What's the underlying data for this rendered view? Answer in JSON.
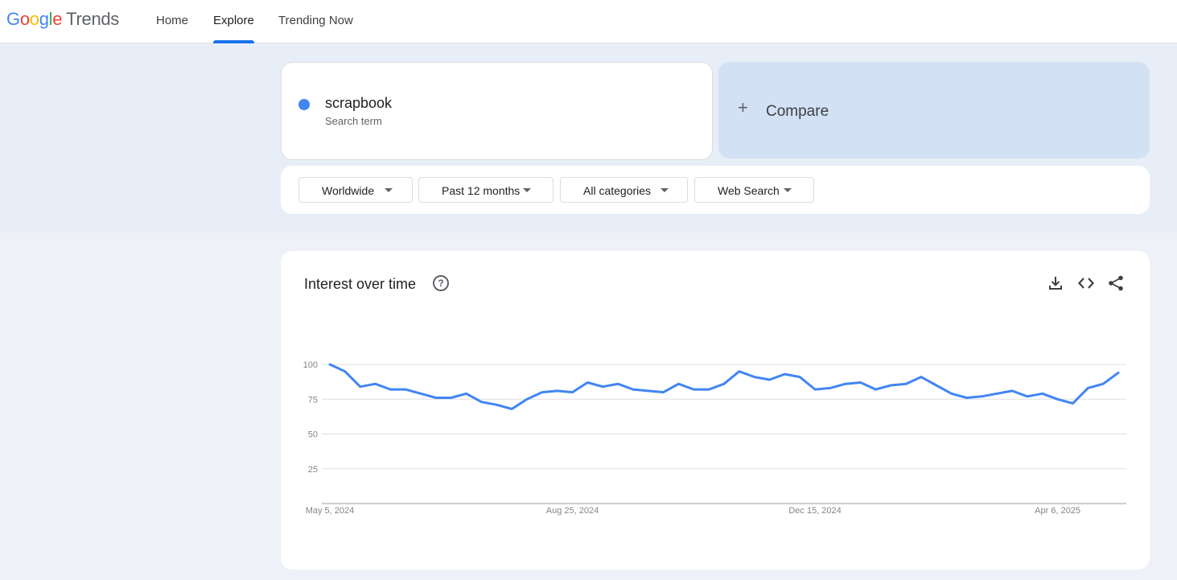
{
  "header": {
    "logo_letters": [
      "G",
      "o",
      "o",
      "g",
      "l",
      "e"
    ],
    "logo_product": "Trends",
    "nav": [
      "Home",
      "Explore",
      "Trending Now"
    ],
    "active_nav": "Explore"
  },
  "search": {
    "term": "scrapbook",
    "term_type": "Search term",
    "term_color": "#4285f4",
    "compare_label": "Compare"
  },
  "filters": [
    "Worldwide",
    "Past 12 months",
    "All categories",
    "Web Search"
  ],
  "chart_card": {
    "title": "Interest over time",
    "icons": [
      "help-icon",
      "download-icon",
      "embed-code-icon",
      "share-icon"
    ]
  },
  "chart_data": {
    "type": "line",
    "title": "Interest over time",
    "xlabel": "",
    "ylabel": "",
    "ylim": [
      0,
      100
    ],
    "y_ticks": [
      "100",
      "75",
      "50",
      "25"
    ],
    "x_ticks": [
      "May 5, 2024",
      "Aug 25, 2024",
      "Dec 15, 2024",
      "Apr 6, 2025"
    ],
    "x": [
      "2024-05-05",
      "2024-05-12",
      "2024-05-19",
      "2024-05-26",
      "2024-06-02",
      "2024-06-09",
      "2024-06-16",
      "2024-06-23",
      "2024-06-30",
      "2024-07-07",
      "2024-07-14",
      "2024-07-21",
      "2024-07-28",
      "2024-08-04",
      "2024-08-11",
      "2024-08-18",
      "2024-08-25",
      "2024-09-01",
      "2024-09-08",
      "2024-09-15",
      "2024-09-22",
      "2024-09-29",
      "2024-10-06",
      "2024-10-13",
      "2024-10-20",
      "2024-10-27",
      "2024-11-03",
      "2024-11-10",
      "2024-11-17",
      "2024-11-24",
      "2024-12-01",
      "2024-12-08",
      "2024-12-15",
      "2024-12-22",
      "2024-12-29",
      "2025-01-05",
      "2025-01-12",
      "2025-01-19",
      "2025-01-26",
      "2025-02-02",
      "2025-02-09",
      "2025-02-16",
      "2025-02-23",
      "2025-03-02",
      "2025-03-09",
      "2025-03-16",
      "2025-03-23",
      "2025-03-30",
      "2025-04-06",
      "2025-04-13",
      "2025-04-20",
      "2025-04-27",
      "2025-05-04"
    ],
    "series": [
      {
        "values": [
          100,
          95,
          84,
          86,
          82,
          82,
          79,
          76,
          76,
          79,
          73,
          71,
          68,
          75,
          80,
          81,
          80,
          87,
          84,
          86,
          82,
          81,
          80,
          86,
          82,
          82,
          86,
          95,
          91,
          89,
          93,
          91,
          82,
          83,
          86,
          87,
          82,
          85,
          86,
          91,
          85,
          79,
          76,
          77,
          79,
          81,
          77,
          79,
          75,
          72,
          83,
          86,
          94
        ],
        "color": "#4285f4"
      }
    ],
    "grid": true
  }
}
